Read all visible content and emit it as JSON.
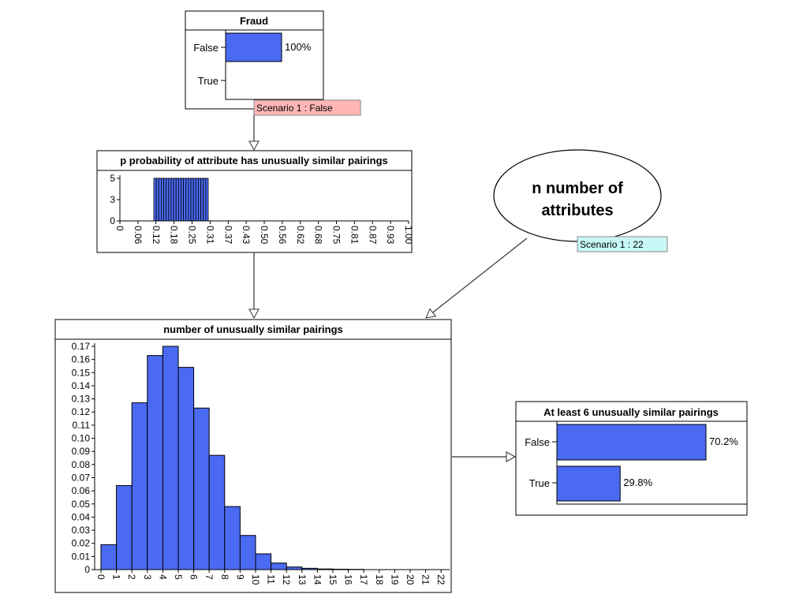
{
  "colors": {
    "bar": "#4a6af2",
    "scenario_false_bg": "#ffb6b6",
    "scenario_num_bg": "#c8f8f8"
  },
  "fraud_node": {
    "title": "Fraud",
    "states": [
      {
        "label": "False",
        "value": 1.0,
        "pct": "100%"
      },
      {
        "label": "True",
        "value": 0.0,
        "pct": ""
      }
    ],
    "scenario": "Scenario 1 : False"
  },
  "p_node": {
    "title": "p probability of attribute has unusually similar pairings",
    "y_ticks": [
      "5",
      "3",
      "0"
    ],
    "x_ticks": [
      "0",
      "0.06",
      "0.12",
      "0.18",
      "0.25",
      "0.31",
      "0.37",
      "0.43",
      "0.50",
      "0.56",
      "0.62",
      "0.68",
      "0.75",
      "0.81",
      "0.87",
      "0.93",
      "1.00"
    ],
    "bar_range": [
      0.1,
      0.3
    ]
  },
  "n_node": {
    "title_lines": [
      "n number of",
      "attributes"
    ],
    "scenario": "Scenario 1 : 22"
  },
  "pairings_node": {
    "title": "number of unusually similar pairings",
    "chart_data": {
      "type": "bar",
      "categories": [
        "0",
        "1",
        "2",
        "3",
        "4",
        "5",
        "6",
        "7",
        "8",
        "9",
        "10",
        "11",
        "12",
        "13",
        "14",
        "15",
        "16",
        "17",
        "18",
        "19",
        "20",
        "21",
        "22"
      ],
      "values": [
        0.019,
        0.064,
        0.127,
        0.163,
        0.17,
        0.154,
        0.123,
        0.087,
        0.048,
        0.026,
        0.012,
        0.005,
        0.002,
        0.001,
        0.0005,
        0.0003,
        0.0002,
        0,
        0,
        0,
        0,
        0,
        0
      ],
      "ylim": [
        0,
        0.17
      ],
      "y_ticks": [
        "0",
        "0.01",
        "0.02",
        "0.03",
        "0.04",
        "0.05",
        "0.06",
        "0.07",
        "0.08",
        "0.09",
        "0.10",
        "0.11",
        "0.12",
        "0.13",
        "0.14",
        "0.15",
        "0.16",
        "0.17"
      ]
    }
  },
  "atleast6_node": {
    "title": "At least 6 unusually similar pairings",
    "states": [
      {
        "label": "False",
        "value": 0.702,
        "pct": "70.2%"
      },
      {
        "label": "True",
        "value": 0.298,
        "pct": "29.8%"
      }
    ]
  }
}
